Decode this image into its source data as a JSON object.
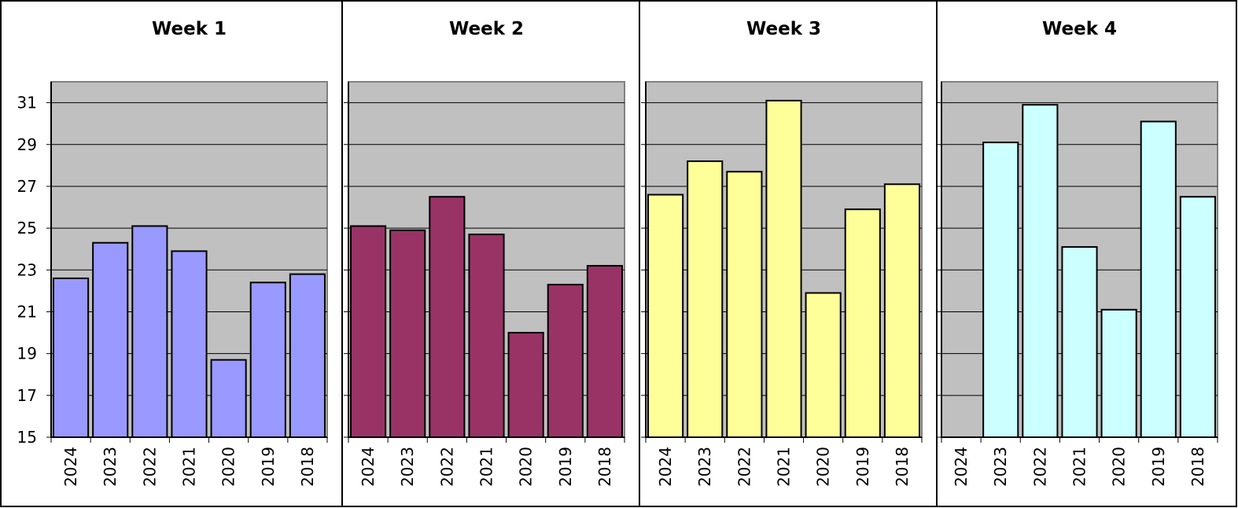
{
  "colors": {
    "plot_background": "#c0c0c0",
    "gridline": "#000000",
    "axis": "#000000",
    "bar_outline": "#000000",
    "panel_border": "#000000"
  },
  "chart_data": [
    {
      "type": "bar",
      "title": "Week 1",
      "categories": [
        "2024",
        "2023",
        "2022",
        "2021",
        "2020",
        "2019",
        "2018"
      ],
      "values": [
        22.6,
        24.3,
        25.1,
        23.9,
        18.7,
        22.4,
        22.8
      ],
      "ylim": [
        15,
        32
      ],
      "yticks": [
        15,
        17,
        19,
        21,
        23,
        25,
        27,
        29,
        31
      ],
      "grid": true,
      "color": "#9999ff",
      "xlabel": "",
      "ylabel": ""
    },
    {
      "type": "bar",
      "title": "Week 2",
      "categories": [
        "2024",
        "2023",
        "2022",
        "2021",
        "2020",
        "2019",
        "2018"
      ],
      "values": [
        25.1,
        24.9,
        26.5,
        24.7,
        20.0,
        22.3,
        23.2
      ],
      "ylim": [
        15,
        32
      ],
      "yticks": [
        15,
        17,
        19,
        21,
        23,
        25,
        27,
        29,
        31
      ],
      "grid": true,
      "color": "#993366",
      "xlabel": "",
      "ylabel": ""
    },
    {
      "type": "bar",
      "title": "Week 3",
      "categories": [
        "2024",
        "2023",
        "2022",
        "2021",
        "2020",
        "2019",
        "2018"
      ],
      "values": [
        26.6,
        28.2,
        27.7,
        31.1,
        21.9,
        25.9,
        27.1
      ],
      "ylim": [
        15,
        32
      ],
      "yticks": [
        15,
        17,
        19,
        21,
        23,
        25,
        27,
        29,
        31
      ],
      "grid": true,
      "color": "#ffff99",
      "xlabel": "",
      "ylabel": ""
    },
    {
      "type": "bar",
      "title": "Week 4",
      "categories": [
        "2024",
        "2023",
        "2022",
        "2021",
        "2020",
        "2019",
        "2018"
      ],
      "values": [
        null,
        29.1,
        30.9,
        24.1,
        21.1,
        30.1,
        26.5
      ],
      "ylim": [
        15,
        32
      ],
      "yticks": [
        15,
        17,
        19,
        21,
        23,
        25,
        27,
        29,
        31
      ],
      "grid": true,
      "color": "#ccffff",
      "xlabel": "",
      "ylabel": ""
    }
  ]
}
